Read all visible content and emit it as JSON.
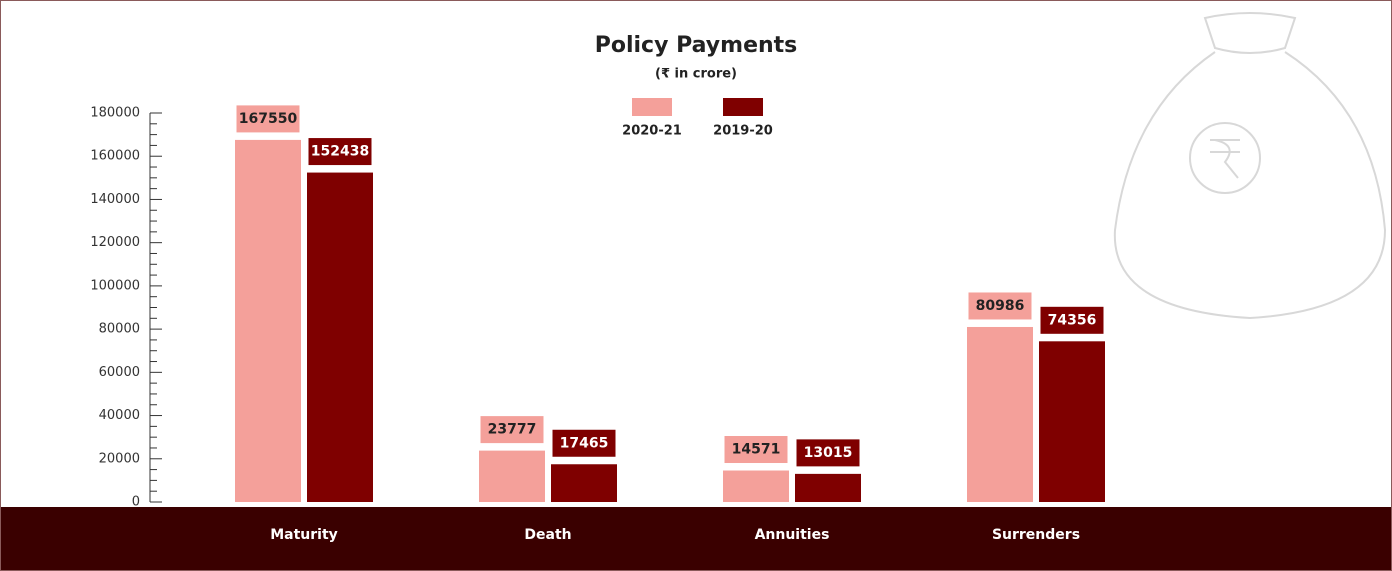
{
  "chart_data": {
    "type": "bar",
    "title": "Policy Payments",
    "subtitle": "(₹ in crore)",
    "categories": [
      "Maturity",
      "Death",
      "Annuities",
      "Surrenders"
    ],
    "series": [
      {
        "name": "2020-21",
        "color": "#f4a09a",
        "values": [
          167550,
          23777,
          14571,
          80986
        ]
      },
      {
        "name": "2019-20",
        "color": "#7f0000",
        "values": [
          152438,
          17465,
          13015,
          74356
        ]
      }
    ],
    "ylim": [
      0,
      180000
    ],
    "yticks": [
      0,
      20000,
      40000,
      60000,
      80000,
      100000,
      120000,
      140000,
      160000,
      180000
    ],
    "minor_yticks": [
      5000,
      10000,
      15000,
      25000,
      30000,
      35000,
      45000,
      50000,
      55000,
      65000,
      70000,
      75000,
      85000,
      90000,
      95000,
      105000,
      110000,
      115000,
      125000,
      130000,
      135000,
      145000,
      150000,
      155000,
      165000,
      170000,
      175000
    ]
  }
}
